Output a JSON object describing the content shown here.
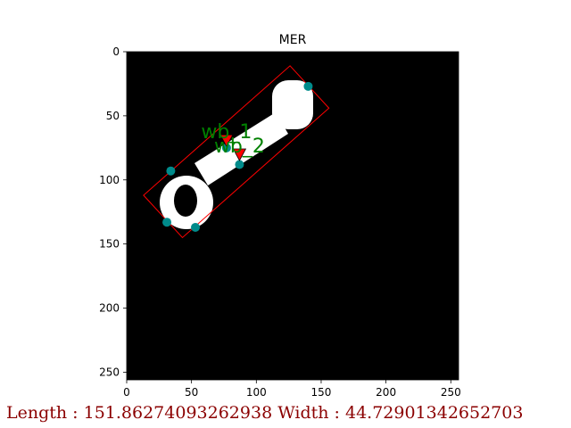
{
  "chart_data": {
    "type": "image",
    "title": "MER",
    "xlim": [
      0,
      256
    ],
    "ylim": [
      256,
      0
    ],
    "x_ticks": [
      0,
      50,
      100,
      150,
      200,
      250
    ],
    "y_ticks": [
      0,
      50,
      100,
      150,
      200,
      250
    ],
    "x_tick_labels": [
      "0",
      "50",
      "100",
      "150",
      "200",
      "250"
    ],
    "y_tick_labels": [
      "0",
      "50",
      "100",
      "150",
      "200",
      "250"
    ],
    "colors": {
      "background": "#000000",
      "object": "#ffffff",
      "rectangle": "#ff0000",
      "corner_points": "#008b8b",
      "markers": "#ff0000",
      "annotation_text": "#008000"
    },
    "minimum_enclosing_rectangle": [
      [
        126,
        11
      ],
      [
        156,
        44
      ],
      [
        43,
        145
      ],
      [
        13,
        112
      ]
    ],
    "corner_points": [
      {
        "x": 140,
        "y": 27
      },
      {
        "x": 77,
        "y": 75
      },
      {
        "x": 87,
        "y": 88
      },
      {
        "x": 34,
        "y": 93
      },
      {
        "x": 31,
        "y": 133
      },
      {
        "x": 53,
        "y": 137
      }
    ],
    "markers": [
      {
        "label": "wb_1",
        "x": 77,
        "y": 69
      },
      {
        "label": "wb_2",
        "x": 87,
        "y": 80
      }
    ]
  },
  "caption": "Length : 151.86274093262938  Width : 44.72901342652703"
}
